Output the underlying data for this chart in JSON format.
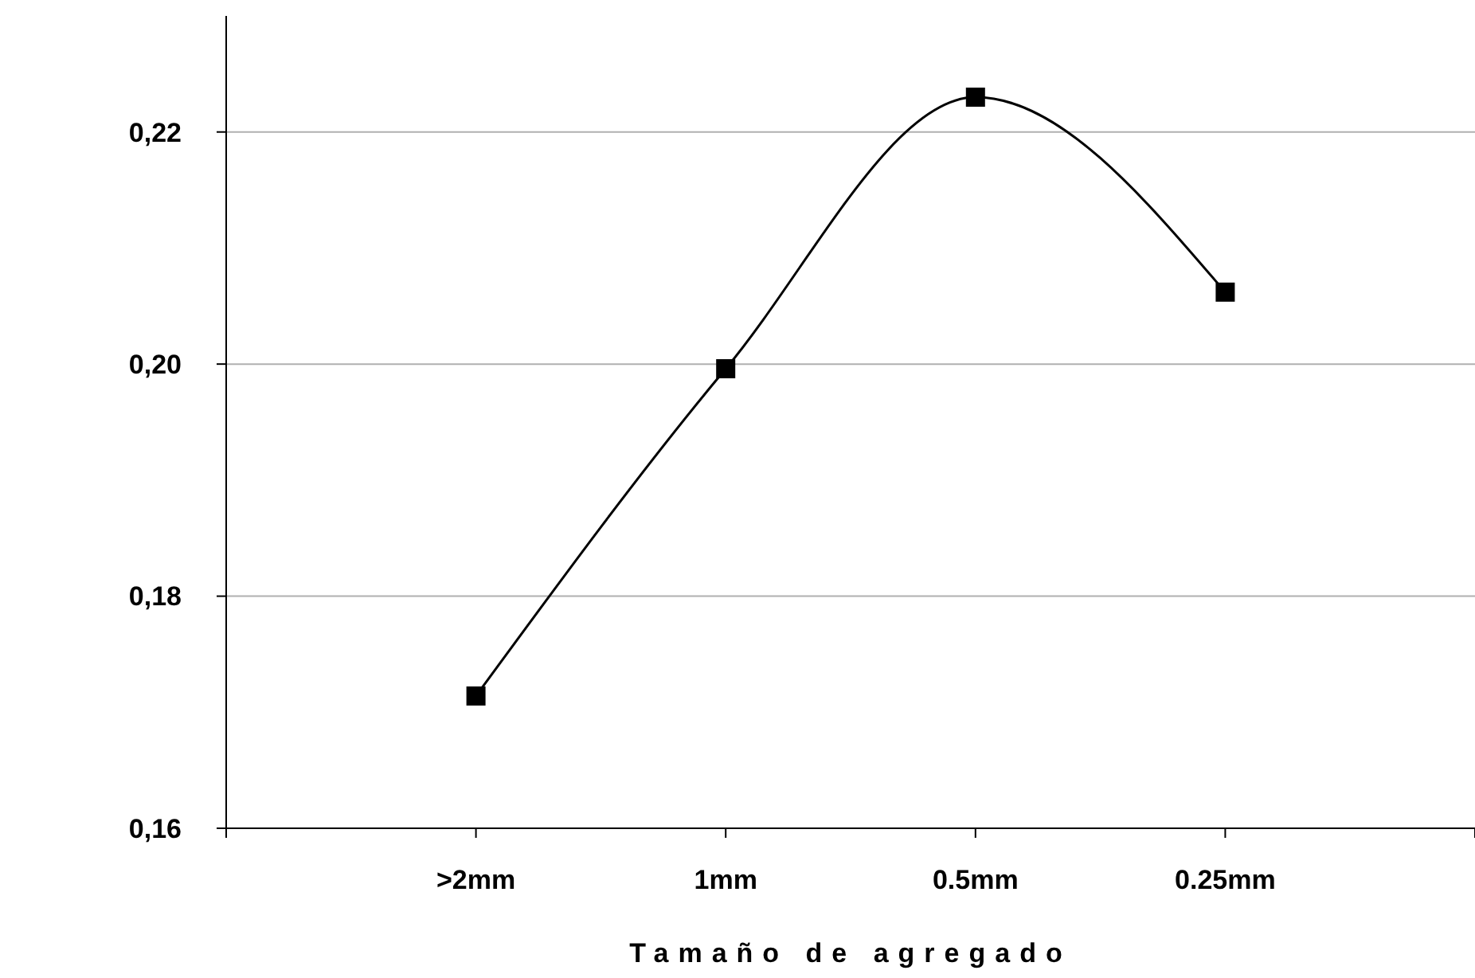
{
  "chart_data": {
    "type": "line",
    "xlabel": "Tamaño de agregado",
    "categories": [
      ">2mm",
      "1mm",
      "0.5mm",
      "0.25mm"
    ],
    "series": [
      {
        "color": "#000000",
        "values": [
          0.1714,
          0.1996,
          0.223,
          0.2062
        ]
      }
    ],
    "ylim": [
      0.16,
      0.23
    ],
    "yticks": [
      {
        "value": 0.16,
        "label": "0,16"
      },
      {
        "value": 0.18,
        "label": "0,18"
      },
      {
        "value": 0.2,
        "label": "0,20"
      },
      {
        "value": 0.22,
        "label": "0,22"
      }
    ],
    "grid": "y",
    "marker": "square",
    "line_style": "solid"
  }
}
